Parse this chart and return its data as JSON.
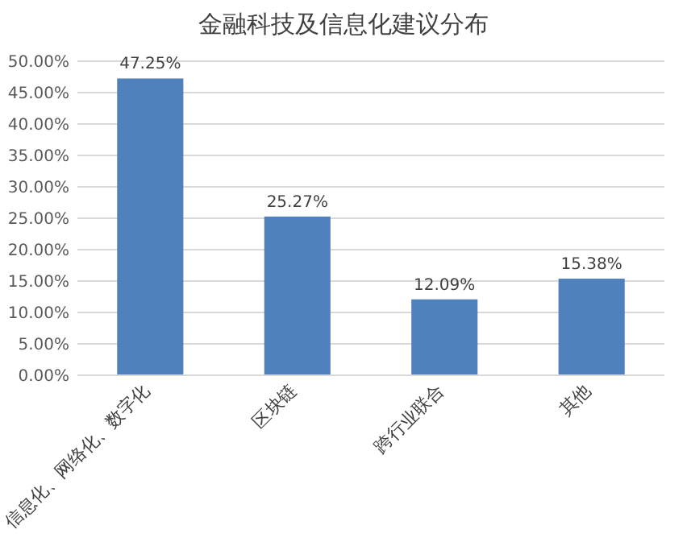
{
  "chart_data": {
    "type": "bar",
    "title": "金融科技及信息化建议分布",
    "categories": [
      "信息化、网络化、数字化",
      "区块链",
      "跨行业联合",
      "其他"
    ],
    "values": [
      47.25,
      25.27,
      12.09,
      15.38
    ],
    "value_labels": [
      "47.25%",
      "25.27%",
      "12.09%",
      "15.38%"
    ],
    "color": "#4f81bd",
    "ylim": [
      0,
      50
    ],
    "yticks": [
      {
        "value": 0,
        "label": "0.00%"
      },
      {
        "value": 5,
        "label": "5.00%"
      },
      {
        "value": 10,
        "label": "10.00%"
      },
      {
        "value": 15,
        "label": "15.00%"
      },
      {
        "value": 20,
        "label": "20.00%"
      },
      {
        "value": 25,
        "label": "25.00%"
      },
      {
        "value": 30,
        "label": "30.00%"
      },
      {
        "value": 35,
        "label": "35.00%"
      },
      {
        "value": 40,
        "label": "40.00%"
      },
      {
        "value": 45,
        "label": "45.00%"
      },
      {
        "value": 50,
        "label": "50.00%"
      }
    ],
    "grid": "y"
  }
}
